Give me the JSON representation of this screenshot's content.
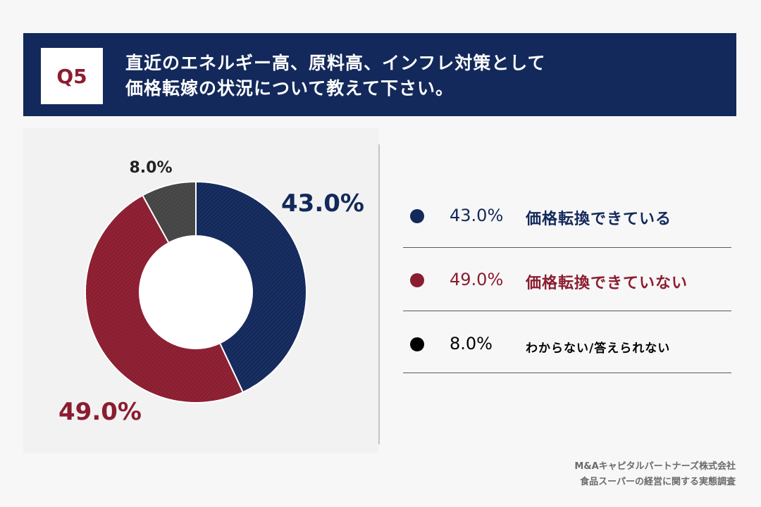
{
  "header": {
    "badge": "Q5",
    "question_line1": "直近のエネルギー高、原料高、インフレ対策として",
    "question_line2": "価格転嫁の状況について教えて下さい。"
  },
  "colors": {
    "navy": "#13295b",
    "crimson": "#8b1d30",
    "dark": "#444444",
    "black": "#000000"
  },
  "chart_data": {
    "type": "pie",
    "variant": "donut",
    "categories": [
      "価格転換できている",
      "価格転換できていない",
      "わからない/答えられない"
    ],
    "values": [
      43.0,
      49.0,
      8.0
    ],
    "value_labels": [
      "43.0%",
      "49.0%",
      "8.0%"
    ],
    "colors": [
      "#13295b",
      "#8b1d30",
      "#444444"
    ],
    "start": "12 o'clock",
    "direction": "clockwise",
    "legend_position": "right"
  },
  "legend": [
    {
      "value": "43.0%",
      "label": "価格転換できている",
      "color": "#13295b"
    },
    {
      "value": "49.0%",
      "label": "価格転換できていない",
      "color": "#8b1d30"
    },
    {
      "value": "8.0%",
      "label": "わからない/答えられない",
      "color": "#000000"
    }
  ],
  "footer": {
    "line1": "M&Aキャピタルパートナーズ株式会社",
    "line2": "食品スーパーの経営に関する実態調査"
  }
}
